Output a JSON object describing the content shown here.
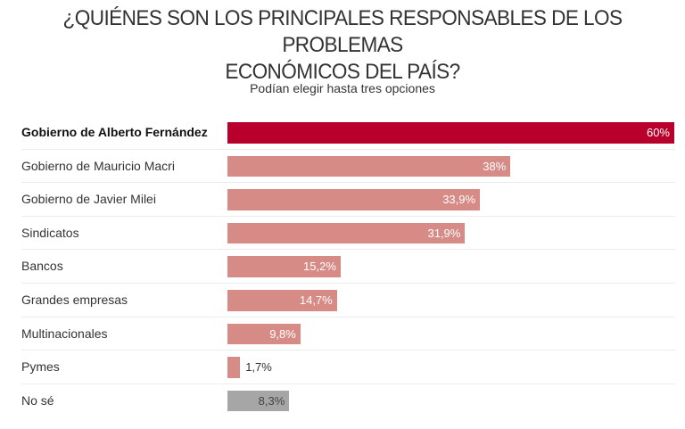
{
  "header": {
    "title_line1": "¿QUIÉNES SON LOS PRINCIPALES RESPONSABLES DE LOS PROBLEMAS",
    "title_line2": "ECONÓMICOS DEL PAÍS?",
    "subtitle": "Podían elegir hasta tres opciones"
  },
  "colors": {
    "highlight": "#b9002c",
    "default": "#d68b86",
    "neutral": "#a6a6a6"
  },
  "chart_data": {
    "type": "bar",
    "orientation": "horizontal",
    "title": "¿QUIÉNES SON LOS PRINCIPALES RESPONSABLES DE LOS PROBLEMAS ECONÓMICOS DEL PAÍS?",
    "subtitle": "Podían elegir hasta tres opciones",
    "xlabel": "",
    "ylabel": "",
    "xlim": [
      0,
      60
    ],
    "grid": false,
    "unit": "%",
    "categories": [
      "Gobierno de Alberto Fernández",
      "Gobierno de Mauricio Macri",
      "Gobierno de Javier Milei",
      "Sindicatos",
      "Bancos",
      "Grandes empresas",
      "Multinacionales",
      "Pymes",
      "No sé"
    ],
    "values": [
      60,
      38,
      33.9,
      31.9,
      15.2,
      14.7,
      9.8,
      1.7,
      8.3
    ],
    "value_labels": [
      "60%",
      "38%",
      "33,9%",
      "31,9%",
      "15,2%",
      "14,7%",
      "9,8%",
      "1,7%",
      "8,3%"
    ],
    "styles": [
      "highlight",
      "default",
      "default",
      "default",
      "default",
      "default",
      "default",
      "default",
      "neutral"
    ],
    "bold": [
      true,
      false,
      false,
      false,
      false,
      false,
      false,
      false,
      false
    ]
  }
}
